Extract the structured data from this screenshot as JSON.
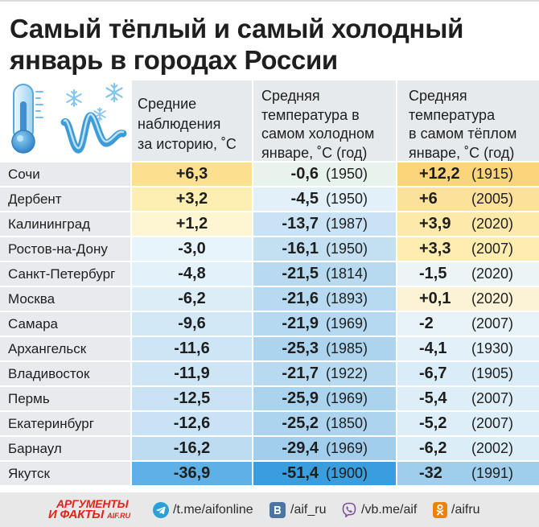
{
  "chart_data": {
    "type": "table",
    "title": [
      "Самый тёплый и самый холодный",
      "январь в городах России"
    ],
    "column_headers": {
      "average": [
        "Средние",
        "наблюдения",
        "за историю, ˚С"
      ],
      "coldest": [
        "Средняя",
        "температура в",
        "самом холодном",
        "январе, ˚С (год)"
      ],
      "warmest": [
        "Средняя",
        "температура",
        "в самом тёплом",
        "январе, ˚С (год)"
      ]
    },
    "rows": [
      {
        "city": "Сочи",
        "average": {
          "value": "+6,3",
          "color": "#fcdf8f"
        },
        "coldest": {
          "value": "-0,6",
          "year": "(1950)",
          "color": "#e8f3ee"
        },
        "warmest": {
          "value": "+12,2",
          "year": "(1915)",
          "color": "#fbd47c"
        }
      },
      {
        "city": "Дербент",
        "average": {
          "value": "+3,2",
          "color": "#fdeeb2"
        },
        "coldest": {
          "value": "-4,5",
          "year": "(1950)",
          "color": "#e1f0f9"
        },
        "warmest": {
          "value": "+6",
          "year": "(2005)",
          "color": "#fce19a"
        }
      },
      {
        "city": "Калининград",
        "average": {
          "value": "+1,2",
          "color": "#fef5d2"
        },
        "coldest": {
          "value": "-13,7",
          "year": "(1987)",
          "color": "#c9e3f4"
        },
        "warmest": {
          "value": "+3,9",
          "year": "(2020)",
          "color": "#fdeaaa"
        }
      },
      {
        "city": "Ростов-на-Дону",
        "average": {
          "value": "-3,0",
          "color": "#e8f4fb"
        },
        "coldest": {
          "value": "-16,1",
          "year": "(1950)",
          "color": "#c3e0f3"
        },
        "warmest": {
          "value": "+3,3",
          "year": "(2007)",
          "color": "#fdedb0"
        }
      },
      {
        "city": "Санкт-Петербург",
        "average": {
          "value": "-4,8",
          "color": "#e3f1fa"
        },
        "coldest": {
          "value": "-21,5",
          "year": "(1814)",
          "color": "#b7daf0"
        },
        "warmest": {
          "value": "-1,5",
          "year": "(2020)",
          "color": "#ebf5f5"
        }
      },
      {
        "city": "Москва",
        "average": {
          "value": "-6,2",
          "color": "#dcedf8"
        },
        "coldest": {
          "value": "-21,6",
          "year": "(1893)",
          "color": "#b7daf0"
        },
        "warmest": {
          "value": "+0,1",
          "year": "(2020)",
          "color": "#fcf3d6"
        }
      },
      {
        "city": "Самара",
        "average": {
          "value": "-9,6",
          "color": "#d3e8f6"
        },
        "coldest": {
          "value": "-21,9",
          "year": "(1969)",
          "color": "#b5d9f0"
        },
        "warmest": {
          "value": "-2",
          "year": "(2007)",
          "color": "#e8f3f8"
        }
      },
      {
        "city": "Архангельск",
        "average": {
          "value": "-11,6",
          "color": "#cde5f5"
        },
        "coldest": {
          "value": "-25,3",
          "year": "(1985)",
          "color": "#acd4ee"
        },
        "warmest": {
          "value": "-4,1",
          "year": "(1930)",
          "color": "#e1f0f9"
        }
      },
      {
        "city": "Владивосток",
        "average": {
          "value": "-11,9",
          "color": "#cde5f5"
        },
        "coldest": {
          "value": "-21,7",
          "year": "(1922)",
          "color": "#b7daf0"
        },
        "warmest": {
          "value": "-6,7",
          "year": "(1905)",
          "color": "#d9ecf7"
        }
      },
      {
        "city": "Пермь",
        "average": {
          "value": "-12,5",
          "color": "#c9e3f4"
        },
        "coldest": {
          "value": "-25,9",
          "year": "(1969)",
          "color": "#aad3ee"
        },
        "warmest": {
          "value": "-5,4",
          "year": "(2007)",
          "color": "#ddeef8"
        }
      },
      {
        "city": "Екатеринбург",
        "average": {
          "value": "-12,6",
          "color": "#c9e3f4"
        },
        "coldest": {
          "value": "-25,2",
          "year": "(1850)",
          "color": "#acd4ee"
        },
        "warmest": {
          "value": "-5,2",
          "year": "(2007)",
          "color": "#ddeef8"
        }
      },
      {
        "city": "Барнаул",
        "average": {
          "value": "-16,2",
          "color": "#bddcf1"
        },
        "coldest": {
          "value": "-29,4",
          "year": "(1969)",
          "color": "#a0ceec"
        },
        "warmest": {
          "value": "-6,2",
          "year": "(2002)",
          "color": "#dbedf7"
        }
      },
      {
        "city": "Якутск",
        "average": {
          "value": "-36,9",
          "color": "#5eb0e5"
        },
        "coldest": {
          "value": "-51,4",
          "year": "(1900)",
          "color": "#3a9ddd"
        },
        "warmest": {
          "value": "-32",
          "year": "(1991)",
          "color": "#9fcdec"
        }
      }
    ]
  },
  "header_icon": "thermometer-snowflakes-icon",
  "footer": {
    "logo": {
      "line1": "АРГУМЕНТЫ",
      "line2": "И ФАКТЫ",
      "site": "AIF.RU",
      "color": "#e2231a"
    },
    "links": [
      {
        "icon": "telegram-icon",
        "text": "/t.me/aifonline"
      },
      {
        "icon": "vk-icon",
        "text": "/aif_ru"
      },
      {
        "icon": "viber-icon",
        "text": "/vb.me/aif"
      },
      {
        "icon": "odnoklassniki-icon",
        "text": "/aifru"
      }
    ]
  }
}
